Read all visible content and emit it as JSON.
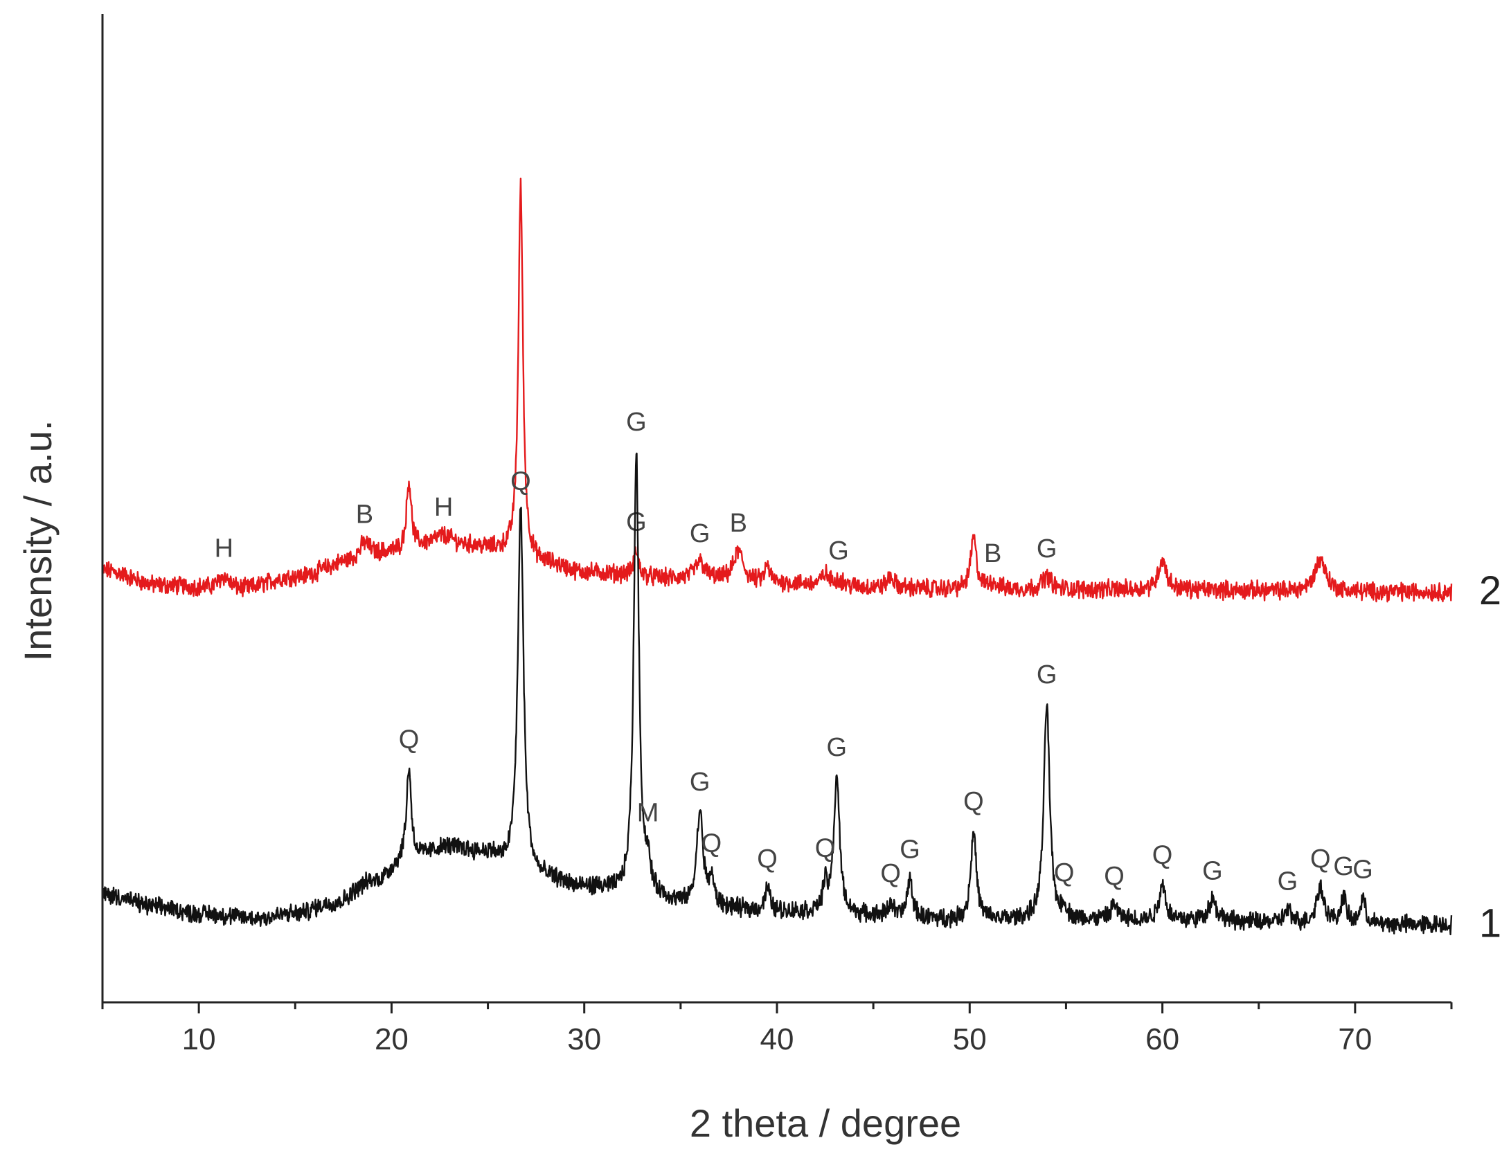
{
  "chart_data": {
    "type": "line",
    "xlabel": "2 theta / degree",
    "ylabel": "Intensity / a.u.",
    "xlim": [
      5,
      75
    ],
    "x_ticks": [
      10,
      20,
      30,
      40,
      50,
      60,
      70
    ],
    "y_ticks_shown": false,
    "grid": false,
    "legend": "none",
    "series": [
      {
        "label": "2",
        "color": "#e41a1c",
        "offset": 1.55,
        "baseline": [
          [
            5,
            0.05
          ],
          [
            8,
            -0.02
          ],
          [
            12,
            -0.04
          ],
          [
            15,
            0.02
          ],
          [
            18,
            0.09
          ],
          [
            20,
            0.13
          ],
          [
            22,
            0.16
          ],
          [
            24,
            0.16
          ],
          [
            26,
            0.14
          ],
          [
            28,
            0.08
          ],
          [
            30,
            0.04
          ],
          [
            35,
            0.01
          ],
          [
            40,
            -0.01
          ],
          [
            45,
            -0.03
          ],
          [
            50,
            -0.04
          ],
          [
            60,
            -0.04
          ],
          [
            70,
            -0.05
          ],
          [
            75,
            -0.05
          ]
        ],
        "peaks": [
          {
            "x": 11.3,
            "h": 0.06,
            "w": 0.35,
            "label": "H"
          },
          {
            "x": 18.6,
            "h": 0.08,
            "w": 0.35,
            "label": "B"
          },
          {
            "x": 20.9,
            "h": 0.32,
            "w": 0.15,
            "label": ""
          },
          {
            "x": 22.7,
            "h": 0.05,
            "w": 0.6,
            "label": "H"
          },
          {
            "x": 26.7,
            "h": 1.72,
            "w": 0.14,
            "label": ""
          },
          {
            "x": 32.7,
            "h": 0.12,
            "w": 0.14,
            "label": "G"
          },
          {
            "x": 36.0,
            "h": 0.08,
            "w": 0.3,
            "label": "G"
          },
          {
            "x": 38.0,
            "h": 0.14,
            "w": 0.3,
            "label": "B"
          },
          {
            "x": 39.5,
            "h": 0.08,
            "w": 0.15,
            "label": ""
          },
          {
            "x": 42.5,
            "h": 0.05,
            "w": 0.2,
            "label": ""
          },
          {
            "x": 43.2,
            "h": 0.03,
            "w": 0.3,
            "label": "G"
          },
          {
            "x": 45.9,
            "h": 0.05,
            "w": 0.2,
            "label": ""
          },
          {
            "x": 50.2,
            "h": 0.24,
            "w": 0.18,
            "label": ""
          },
          {
            "x": 51.2,
            "h": 0.03,
            "w": 0.3,
            "label": "B"
          },
          {
            "x": 54.0,
            "h": 0.06,
            "w": 0.3,
            "label": "G"
          },
          {
            "x": 60.0,
            "h": 0.14,
            "w": 0.25,
            "label": ""
          },
          {
            "x": 68.2,
            "h": 0.15,
            "w": 0.35,
            "label": ""
          }
        ]
      },
      {
        "label": "1",
        "color": "#111111",
        "offset": 0,
        "baseline": [
          [
            5,
            0.09
          ],
          [
            8,
            0.03
          ],
          [
            10,
            0.0
          ],
          [
            13,
            -0.02
          ],
          [
            15,
            0.0
          ],
          [
            17,
            0.05
          ],
          [
            19,
            0.15
          ],
          [
            21,
            0.26
          ],
          [
            23,
            0.31
          ],
          [
            25,
            0.28
          ],
          [
            26,
            0.22
          ],
          [
            28,
            0.16
          ],
          [
            30,
            0.12
          ],
          [
            33,
            0.08
          ],
          [
            36,
            0.03
          ],
          [
            40,
            0.01
          ],
          [
            45,
            -0.01
          ],
          [
            50,
            -0.03
          ],
          [
            60,
            -0.03
          ],
          [
            70,
            -0.05
          ],
          [
            75,
            -0.05
          ]
        ],
        "peaks": [
          {
            "x": 20.9,
            "h": 0.42,
            "w": 0.15,
            "label": "Q"
          },
          {
            "x": 26.7,
            "h": 1.68,
            "w": 0.18,
            "label": "Q"
          },
          {
            "x": 32.7,
            "h": 2.07,
            "w": 0.16,
            "label": "G"
          },
          {
            "x": 33.3,
            "h": 0.12,
            "w": 0.15,
            "label": "M"
          },
          {
            "x": 36.0,
            "h": 0.44,
            "w": 0.2,
            "label": "G"
          },
          {
            "x": 36.6,
            "h": 0.12,
            "w": 0.15,
            "label": "Q"
          },
          {
            "x": 39.5,
            "h": 0.11,
            "w": 0.15,
            "label": "Q"
          },
          {
            "x": 42.5,
            "h": 0.12,
            "w": 0.15,
            "label": "Q"
          },
          {
            "x": 43.1,
            "h": 0.64,
            "w": 0.18,
            "label": "G"
          },
          {
            "x": 45.9,
            "h": 0.06,
            "w": 0.15,
            "label": "Q"
          },
          {
            "x": 46.9,
            "h": 0.18,
            "w": 0.15,
            "label": "G"
          },
          {
            "x": 50.2,
            "h": 0.42,
            "w": 0.17,
            "label": "Q"
          },
          {
            "x": 54.0,
            "h": 1.01,
            "w": 0.18,
            "label": "G"
          },
          {
            "x": 54.9,
            "h": 0.05,
            "w": 0.15,
            "label": "Q"
          },
          {
            "x": 57.5,
            "h": 0.07,
            "w": 0.2,
            "label": "Q"
          },
          {
            "x": 60.0,
            "h": 0.17,
            "w": 0.2,
            "label": "Q"
          },
          {
            "x": 62.6,
            "h": 0.1,
            "w": 0.25,
            "label": "G"
          },
          {
            "x": 66.5,
            "h": 0.06,
            "w": 0.2,
            "label": "G"
          },
          {
            "x": 68.2,
            "h": 0.17,
            "w": 0.25,
            "label": "Q"
          },
          {
            "x": 69.4,
            "h": 0.13,
            "w": 0.15,
            "label": "G"
          },
          {
            "x": 70.4,
            "h": 0.12,
            "w": 0.15,
            "label": "G"
          }
        ]
      }
    ]
  }
}
